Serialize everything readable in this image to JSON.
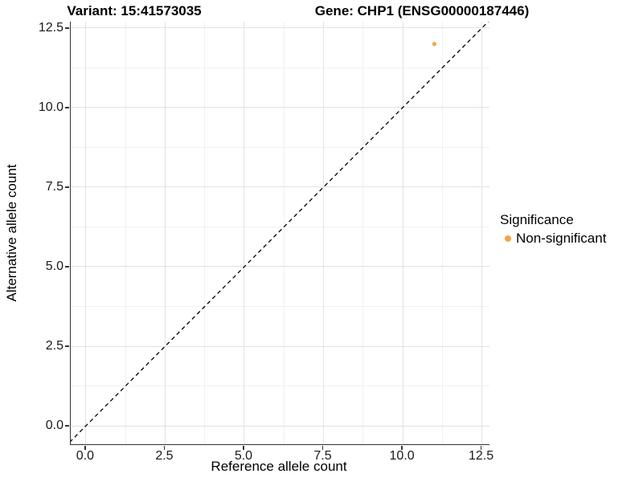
{
  "figure": {
    "title_variant": "Variant: 15:41573035",
    "title_gene": "Gene: CHP1 (ENSG00000187446)"
  },
  "legend": {
    "title": "Significance",
    "items": [
      {
        "label": "Non-significant",
        "color": "#F8A444"
      }
    ]
  },
  "colors": {
    "point": "#F8A444",
    "grid_major": "#E2E2E2",
    "grid_minor": "#F0F0F0",
    "axis_line": "#333333",
    "identity_line": "#000000",
    "tick_text": "#1a1a1a"
  },
  "chart_data": {
    "type": "scatter",
    "title": "Variant: 15:41573035    Gene: CHP1 (ENSG00000187446)",
    "xlabel": "Reference allele count",
    "ylabel": "Alternative allele count",
    "xlim": [
      -0.48,
      12.74
    ],
    "ylim": [
      -0.58,
      12.7
    ],
    "x_ticks": [
      0,
      2.5,
      5,
      7.5,
      10,
      12.5
    ],
    "x_tick_labels": [
      "0.0",
      "2.5",
      "5.0",
      "7.5",
      "10.0",
      "12.5"
    ],
    "y_ticks": [
      0,
      2.5,
      5,
      7.5,
      10,
      12.5
    ],
    "y_tick_labels": [
      "0.0",
      "2.5",
      "5.0",
      "7.5",
      "10.0",
      "12.5"
    ],
    "x_minor_ticks": [
      1.25,
      3.75,
      6.25,
      8.75,
      11.25
    ],
    "y_minor_ticks": [
      1.25,
      3.75,
      6.25,
      8.75,
      11.25
    ],
    "grid": true,
    "legend_position": "right",
    "series": [
      {
        "name": "Non-significant",
        "color": "#F8A444",
        "points": [
          {
            "x": 11,
            "y": 12
          }
        ]
      }
    ],
    "reference_line": {
      "type": "identity",
      "style": "dashed",
      "from": -1,
      "to": 14
    }
  }
}
